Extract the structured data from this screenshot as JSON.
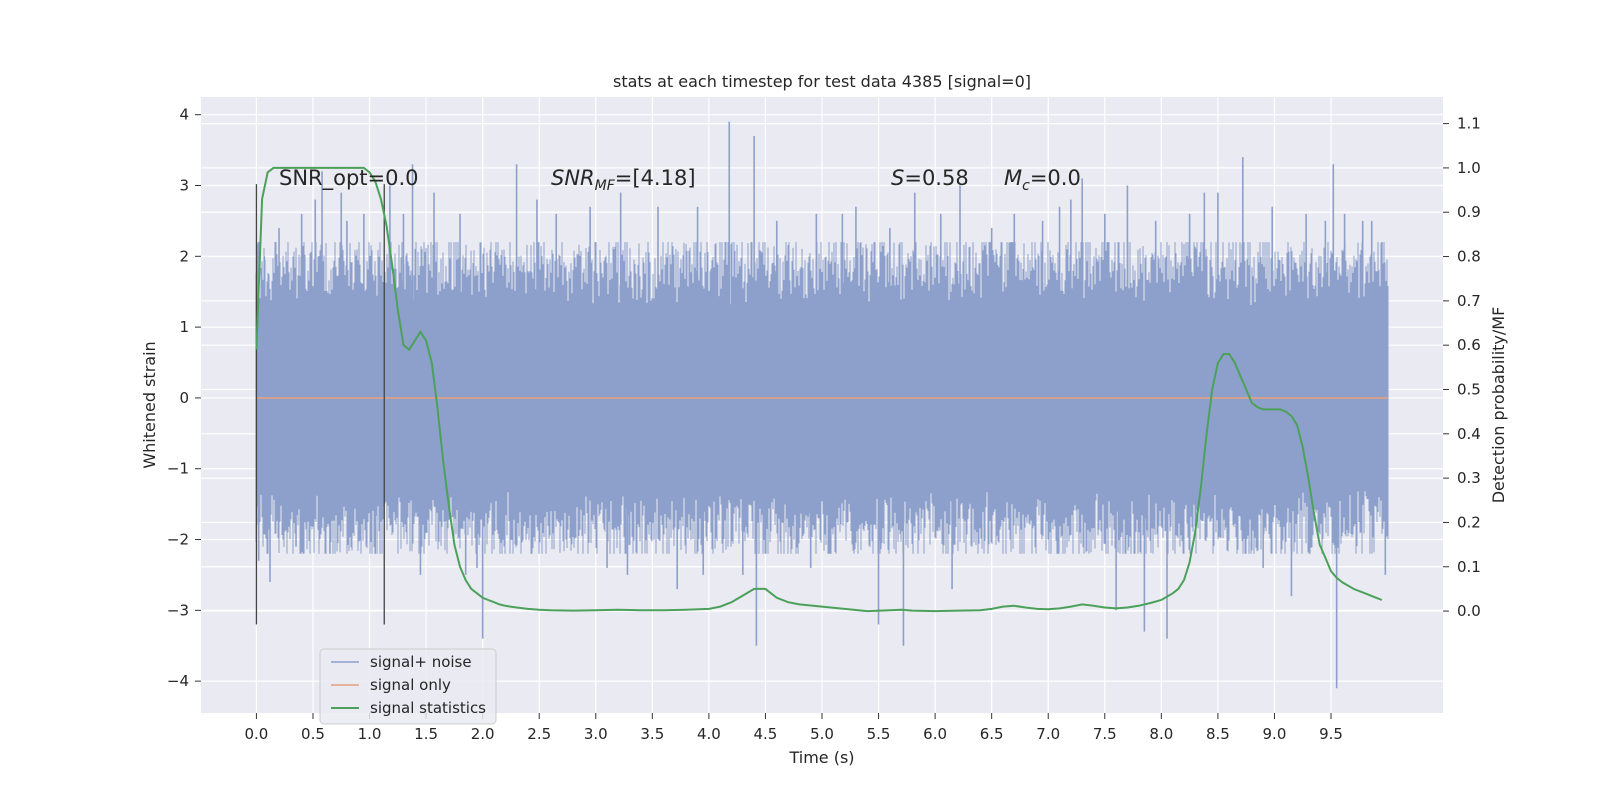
{
  "chart_data": {
    "type": "line",
    "title": "stats at each timestep for test data 4385 [signal=0]",
    "xlabel": "Time (s)",
    "ylabel": "Whitened strain",
    "y2label": "Detection probability/MF",
    "xlim": [
      -0.49,
      10.49
    ],
    "ylim": [
      -4.45,
      4.25
    ],
    "y2lim": [
      -0.23,
      1.16
    ],
    "grid": true,
    "legend_position": "lower-left",
    "x_ticks": [
      "0.0",
      "0.5",
      "1.0",
      "1.5",
      "2.0",
      "2.5",
      "3.0",
      "3.5",
      "4.0",
      "4.5",
      "5.0",
      "5.5",
      "6.0",
      "6.5",
      "7.0",
      "7.5",
      "8.0",
      "8.5",
      "9.0",
      "9.5"
    ],
    "y_ticks": [
      "4",
      "3",
      "2",
      "1",
      "0",
      "−1",
      "−2",
      "−3",
      "−4"
    ],
    "y2_ticks": [
      "1.1",
      "1.0",
      "0.9",
      "0.8",
      "0.7",
      "0.6",
      "0.5",
      "0.4",
      "0.3",
      "0.2",
      "0.1",
      "0.0"
    ],
    "annotations": {
      "snr_opt": "SNR_opt=0.0",
      "snr_mf_label": "SNR",
      "snr_mf_sub": "MF",
      "snr_mf_value": "=[4.18]",
      "s_label": "S",
      "s_value": "=0.58",
      "mc_label": "M",
      "mc_sub": "c",
      "mc_value": "=0.0"
    },
    "vertical_lines": [
      0.0,
      1.13
    ],
    "series": [
      {
        "name": "signal+ noise",
        "color": "#8da0cb",
        "kind": "noise",
        "x_range": [
          0.0,
          10.0
        ],
        "envelope": 1.8,
        "peaks": [
          [
            0.02,
            -2.3
          ],
          [
            0.07,
            2.0
          ],
          [
            0.12,
            -2.6
          ],
          [
            0.2,
            2.4
          ],
          [
            0.35,
            -2.1
          ],
          [
            0.4,
            2.6
          ],
          [
            0.52,
            2.8
          ],
          [
            0.58,
            3.2
          ],
          [
            0.65,
            -2.2
          ],
          [
            0.75,
            2.9
          ],
          [
            0.8,
            2.5
          ],
          [
            0.95,
            2.6
          ],
          [
            1.05,
            -2.2
          ],
          [
            1.18,
            3.0
          ],
          [
            1.3,
            2.6
          ],
          [
            1.38,
            3.3
          ],
          [
            1.45,
            -2.5
          ],
          [
            1.57,
            2.9
          ],
          [
            1.8,
            2.6
          ],
          [
            1.85,
            -2.5
          ],
          [
            1.95,
            -2.4
          ],
          [
            2.0,
            -3.4
          ],
          [
            2.3,
            3.3
          ],
          [
            2.48,
            2.8
          ],
          [
            2.65,
            2.6
          ],
          [
            2.95,
            2.7
          ],
          [
            3.1,
            -2.4
          ],
          [
            3.22,
            2.9
          ],
          [
            3.28,
            -2.5
          ],
          [
            3.55,
            2.7
          ],
          [
            3.72,
            -2.7
          ],
          [
            3.9,
            2.7
          ],
          [
            3.95,
            -2.5
          ],
          [
            4.18,
            3.9
          ],
          [
            4.3,
            -2.5
          ],
          [
            4.4,
            3.7
          ],
          [
            4.42,
            -3.5
          ],
          [
            4.6,
            2.5
          ],
          [
            4.9,
            -2.4
          ],
          [
            4.95,
            2.6
          ],
          [
            5.18,
            2.6
          ],
          [
            5.3,
            2.7
          ],
          [
            5.5,
            -3.2
          ],
          [
            5.6,
            2.4
          ],
          [
            5.72,
            -3.5
          ],
          [
            5.82,
            2.9
          ],
          [
            6.05,
            2.6
          ],
          [
            6.15,
            -2.7
          ],
          [
            6.22,
            3.0
          ],
          [
            6.5,
            2.4
          ],
          [
            6.7,
            2.6
          ],
          [
            6.95,
            2.5
          ],
          [
            7.1,
            2.7
          ],
          [
            7.2,
            2.8
          ],
          [
            7.3,
            3.1
          ],
          [
            7.5,
            2.6
          ],
          [
            7.6,
            -3.0
          ],
          [
            7.7,
            3.0
          ],
          [
            7.85,
            -3.3
          ],
          [
            7.95,
            2.5
          ],
          [
            8.05,
            -3.4
          ],
          [
            8.25,
            2.6
          ],
          [
            8.38,
            2.9
          ],
          [
            8.5,
            2.9
          ],
          [
            8.72,
            3.4
          ],
          [
            8.9,
            -2.4
          ],
          [
            8.98,
            2.7
          ],
          [
            9.15,
            -2.8
          ],
          [
            9.28,
            2.6
          ],
          [
            9.45,
            2.5
          ],
          [
            9.52,
            3.3
          ],
          [
            9.55,
            -4.1
          ],
          [
            9.62,
            2.6
          ],
          [
            9.78,
            2.5
          ],
          [
            9.86,
            2.5
          ],
          [
            9.95,
            2.2
          ],
          [
            9.98,
            -2.5
          ]
        ]
      },
      {
        "name": "signal only",
        "color": "#e6a080",
        "kind": "flat",
        "x": [
          0.0,
          10.0
        ],
        "y": [
          0.0,
          0.0
        ]
      },
      {
        "name": "signal statistics",
        "color": "#4ca15a",
        "kind": "line",
        "axis": "y2",
        "x": [
          0.0,
          0.05,
          0.1,
          0.15,
          0.2,
          0.3,
          0.4,
          0.5,
          0.6,
          0.7,
          0.8,
          0.9,
          0.95,
          1.0,
          1.05,
          1.1,
          1.15,
          1.2,
          1.25,
          1.3,
          1.35,
          1.4,
          1.45,
          1.5,
          1.55,
          1.6,
          1.65,
          1.7,
          1.75,
          1.8,
          1.85,
          1.9,
          1.95,
          2.0,
          2.05,
          2.1,
          2.15,
          2.2,
          2.3,
          2.4,
          2.5,
          2.6,
          2.8,
          3.0,
          3.2,
          3.4,
          3.6,
          3.8,
          4.0,
          4.1,
          4.2,
          4.3,
          4.4,
          4.5,
          4.6,
          4.7,
          4.8,
          5.0,
          5.2,
          5.4,
          5.6,
          5.7,
          5.8,
          6.0,
          6.2,
          6.4,
          6.5,
          6.6,
          6.7,
          6.8,
          6.9,
          7.0,
          7.1,
          7.2,
          7.3,
          7.4,
          7.5,
          7.6,
          7.7,
          7.8,
          7.9,
          8.0,
          8.1,
          8.15,
          8.2,
          8.25,
          8.3,
          8.35,
          8.4,
          8.45,
          8.5,
          8.55,
          8.6,
          8.65,
          8.7,
          8.75,
          8.8,
          8.85,
          8.9,
          8.95,
          9.0,
          9.05,
          9.1,
          9.15,
          9.2,
          9.25,
          9.3,
          9.35,
          9.4,
          9.45,
          9.5,
          9.55,
          9.6,
          9.7,
          9.8,
          9.9,
          9.95
        ],
        "y": [
          0.59,
          0.93,
          0.99,
          1.0,
          1.0,
          1.0,
          1.0,
          1.0,
          1.0,
          1.0,
          1.0,
          1.0,
          1.0,
          0.99,
          0.97,
          0.93,
          0.87,
          0.78,
          0.68,
          0.6,
          0.59,
          0.61,
          0.63,
          0.61,
          0.56,
          0.46,
          0.34,
          0.24,
          0.15,
          0.1,
          0.07,
          0.05,
          0.04,
          0.03,
          0.025,
          0.02,
          0.015,
          0.012,
          0.008,
          0.005,
          0.003,
          0.002,
          0.001,
          0.002,
          0.003,
          0.002,
          0.002,
          0.003,
          0.005,
          0.01,
          0.02,
          0.035,
          0.05,
          0.05,
          0.03,
          0.02,
          0.015,
          0.01,
          0.005,
          0.0,
          0.002,
          0.003,
          0.001,
          0.0,
          0.001,
          0.002,
          0.005,
          0.01,
          0.012,
          0.008,
          0.005,
          0.004,
          0.006,
          0.01,
          0.015,
          0.012,
          0.008,
          0.006,
          0.008,
          0.012,
          0.018,
          0.025,
          0.04,
          0.05,
          0.07,
          0.11,
          0.18,
          0.28,
          0.4,
          0.5,
          0.56,
          0.58,
          0.58,
          0.56,
          0.53,
          0.5,
          0.47,
          0.46,
          0.455,
          0.455,
          0.455,
          0.455,
          0.45,
          0.44,
          0.42,
          0.37,
          0.3,
          0.22,
          0.15,
          0.12,
          0.09,
          0.075,
          0.065,
          0.05,
          0.04,
          0.03,
          0.025
        ]
      }
    ]
  }
}
